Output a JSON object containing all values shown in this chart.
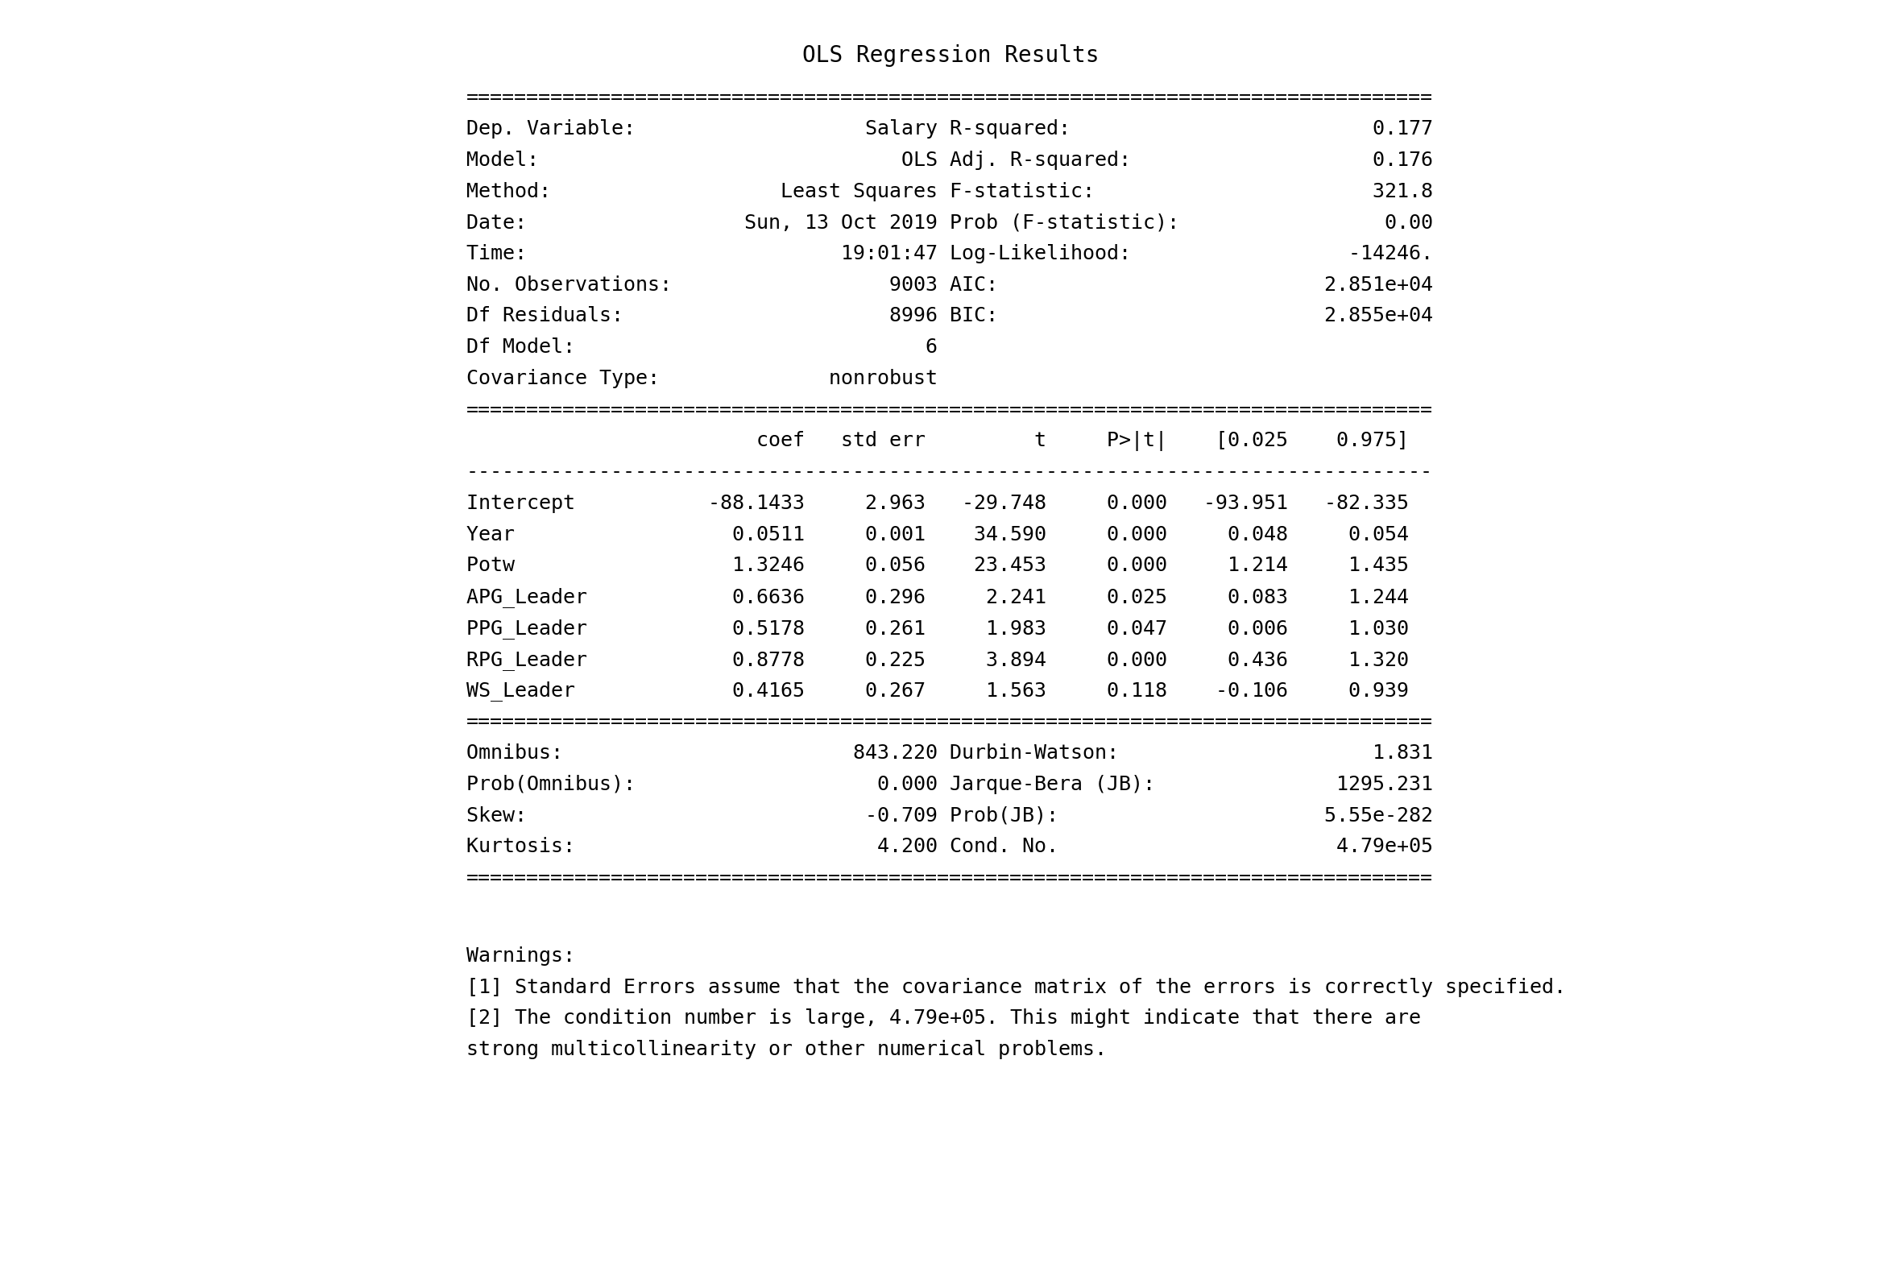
{
  "title": "OLS Regression Results",
  "background_color": "#ffffff",
  "text_color": "#000000",
  "font_family": "monospace",
  "title_fontsize": 20,
  "body_fontsize": 18,
  "equals_line": "================================================================================",
  "dash_line": "--------------------------------------------------------------------------------",
  "top_rows": [
    [
      "Dep. Variable:",
      "Salary",
      "R-squared:",
      "0.177"
    ],
    [
      "Model:",
      "OLS",
      "Adj. R-squared:",
      "0.176"
    ],
    [
      "Method:",
      "Least Squares",
      "F-statistic:",
      "321.8"
    ],
    [
      "Date:",
      "Sun, 13 Oct 2019",
      "Prob (F-statistic):",
      "0.00"
    ],
    [
      "Time:",
      "19:01:47",
      "Log-Likelihood:",
      "-14246."
    ],
    [
      "No. Observations:",
      "9003",
      "AIC:",
      "2.851e+04"
    ],
    [
      "Df Residuals:",
      "8996",
      "BIC:",
      "2.855e+04"
    ],
    [
      "Df Model:",
      "6",
      "",
      ""
    ],
    [
      "Covariance Type:",
      "nonrobust",
      "",
      ""
    ]
  ],
  "coef_header": [
    "",
    "coef",
    "std err",
    "t",
    "P>|t|",
    "[0.025",
    "0.975]"
  ],
  "coef_rows": [
    [
      "Intercept",
      "-88.1433",
      "2.963",
      "-29.748",
      "0.000",
      "-93.951",
      "-82.335"
    ],
    [
      "Year",
      "0.0511",
      "0.001",
      "34.590",
      "0.000",
      "0.048",
      "0.054"
    ],
    [
      "Potw",
      "1.3246",
      "0.056",
      "23.453",
      "0.000",
      "1.214",
      "1.435"
    ],
    [
      "APG_Leader",
      "0.6636",
      "0.296",
      "2.241",
      "0.025",
      "0.083",
      "1.244"
    ],
    [
      "PPG_Leader",
      "0.5178",
      "0.261",
      "1.983",
      "0.047",
      "0.006",
      "1.030"
    ],
    [
      "RPG_Leader",
      "0.8778",
      "0.225",
      "3.894",
      "0.000",
      "0.436",
      "1.320"
    ],
    [
      "WS_Leader",
      "0.4165",
      "0.267",
      "1.563",
      "0.118",
      "-0.106",
      "0.939"
    ]
  ],
  "stats_rows": [
    [
      "Omnibus:",
      "843.220",
      "Durbin-Watson:",
      "1.831"
    ],
    [
      "Prob(Omnibus):",
      "0.000",
      "Jarque-Bera (JB):",
      "1295.231"
    ],
    [
      "Skew:",
      "-0.709",
      "Prob(JB):",
      "5.55e-282"
    ],
    [
      "Kurtosis:",
      "4.200",
      "Cond. No.",
      "4.79e+05"
    ]
  ],
  "warnings": [
    "Warnings:",
    "[1] Standard Errors assume that the covariance matrix of the errors is correctly specified.",
    "[2] The condition number is large, 4.79e+05. This might indicate that there are",
    "strong multicollinearity or other numerical problems."
  ]
}
